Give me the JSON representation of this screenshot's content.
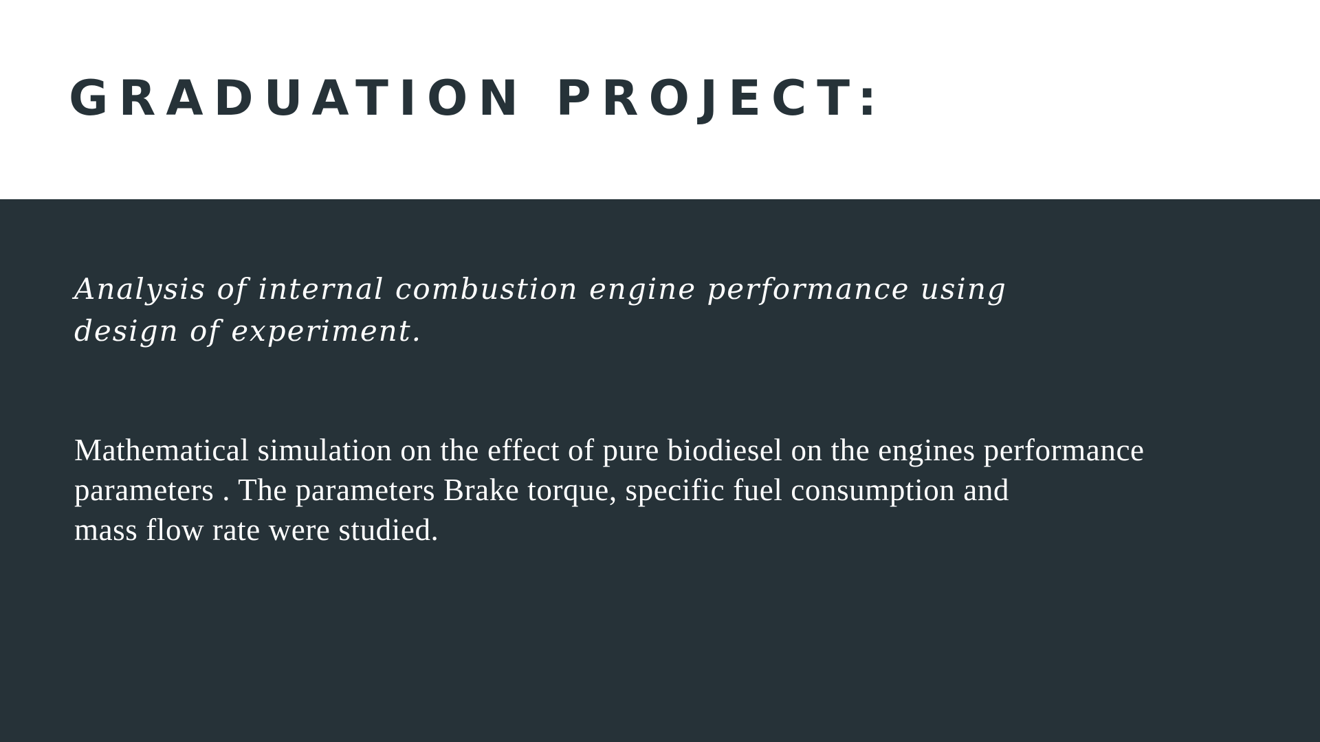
{
  "slide": {
    "title": "GRADUATION PROJECT:",
    "subtitle_lines": [
      "Analysis of internal combustion engine performance using",
      "design of experiment."
    ],
    "body_lines": [
      "Mathematical simulation on the effect of pure biodiesel on the engines performance",
      "parameters . The parameters Brake torque, specific fuel consumption and",
      "mass flow rate were studied."
    ]
  },
  "colors": {
    "title_text": "#263238",
    "dark_panel": "#263238",
    "panel_text": "#ffffff",
    "top_background": "#ffffff"
  }
}
